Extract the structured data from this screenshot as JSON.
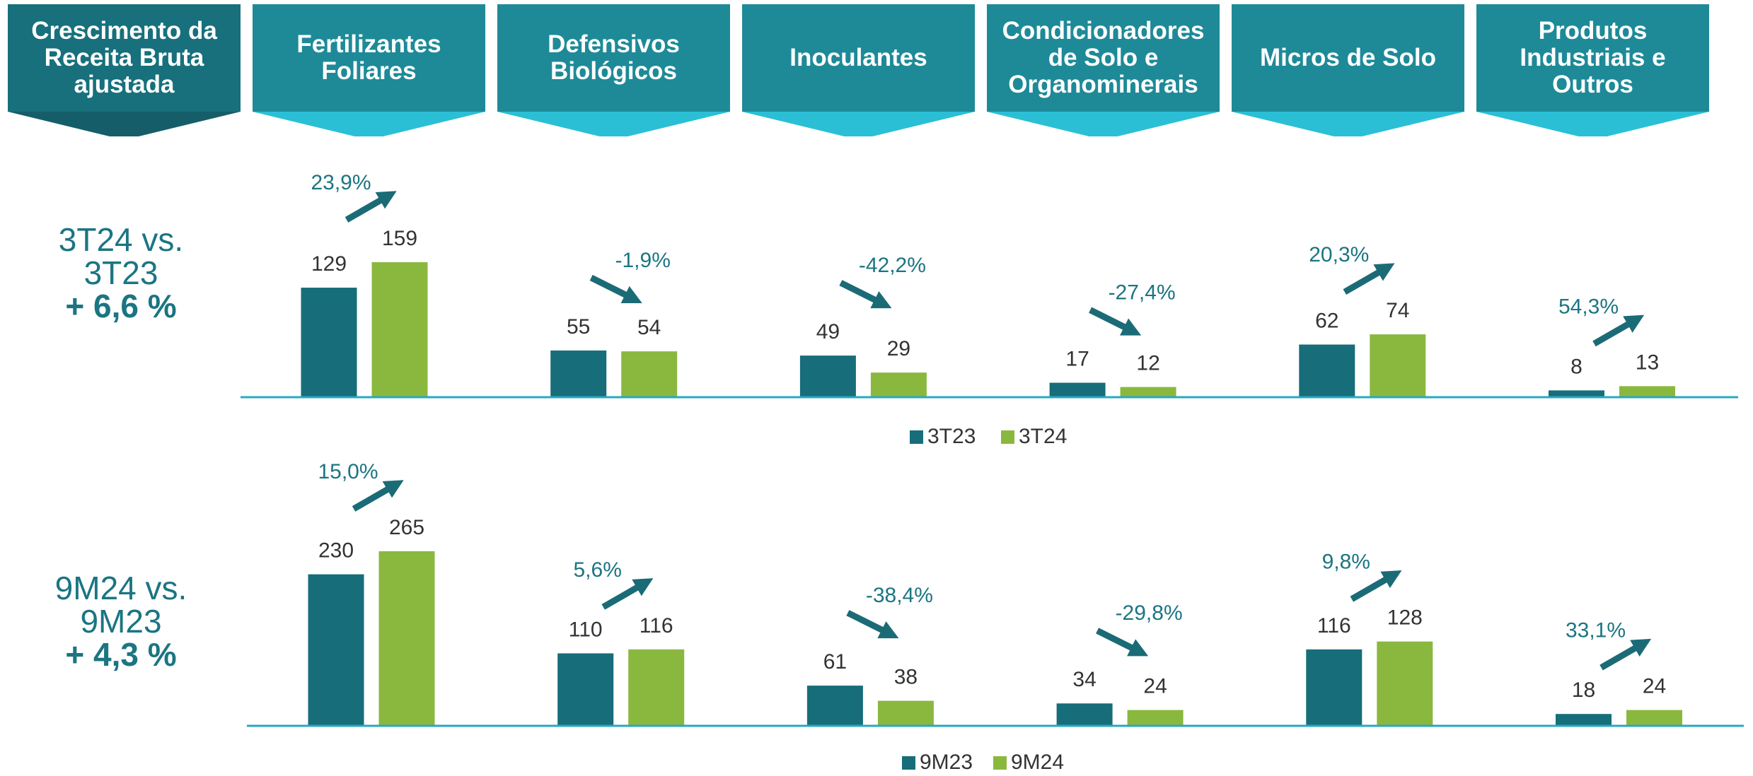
{
  "title": "Crescimento da Receita Bruta ajustada",
  "chart_data": [
    {
      "type": "bar",
      "title": "3T24 vs. 3T23",
      "subtitle": "+ 6,6 %",
      "categories": [
        "Fertilizantes Foliares",
        "Defensivos Biológicos",
        "Inoculantes",
        "Condicionadores de Solo e Organominerais",
        "Micros de Solo",
        "Produtos Industriais e Outros"
      ],
      "series": [
        {
          "name": "3T23",
          "color": "#176d7a",
          "values": [
            129,
            55,
            49,
            17,
            62,
            8
          ]
        },
        {
          "name": "3T24",
          "color": "#8ab83f",
          "values": [
            159,
            54,
            29,
            12,
            74,
            13
          ]
        }
      ],
      "annotations": [
        "23,9%",
        "-1,9%",
        "-42,2%",
        "-27,4%",
        "20,3%",
        "54,3%"
      ]
    },
    {
      "type": "bar",
      "title": "9M24 vs. 9M23",
      "subtitle": "+ 4,3 %",
      "series": [
        {
          "name": "9M23",
          "color": "#176d7a",
          "values": [
            230,
            110,
            61,
            34,
            116,
            18
          ]
        },
        {
          "name": "9M24",
          "color": "#8ab83f",
          "values": [
            265,
            116,
            38,
            24,
            128,
            24
          ]
        }
      ],
      "annotations": [
        "15,0%",
        "5,6%",
        "-38,4%",
        "-29,8%",
        "9,8%",
        "33,1%"
      ]
    }
  ]
}
